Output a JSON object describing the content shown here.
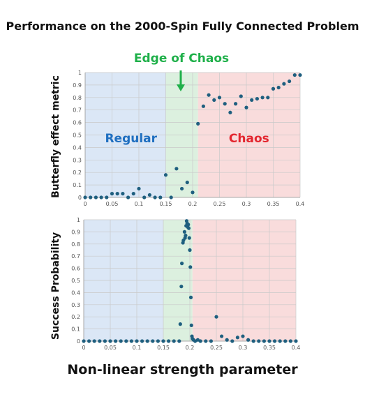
{
  "title": "Performance on the 2000-Spin Fully Connected Problem",
  "edge_label": "Edge of Chaos",
  "x_label": "Non-linear strength parameter",
  "colors": {
    "regular_bg": "#dbe7f6",
    "edge_bg": "#dcf0df",
    "chaos_bg": "#f9dcdc",
    "point": "#1f5f7f",
    "edge_text": "#1fb04a",
    "regular_text": "#1f6fc0",
    "chaos_text": "#e3262f",
    "arrow": "#1fb04a"
  },
  "chart_data": [
    {
      "type": "scatter",
      "ylabel": "Butterfly effect metric",
      "xlim": [
        0,
        0.4
      ],
      "ylim": [
        0,
        1
      ],
      "x_ticks": [
        "0",
        "0.05",
        "0.1",
        "0.15",
        "0.2",
        "0.25",
        "0.3",
        "0.35",
        "0.4"
      ],
      "y_ticks": [
        "0",
        "0.1",
        "0.2",
        "0.3",
        "0.4",
        "0.5",
        "0.6",
        "0.7",
        "0.8",
        "0.9",
        "1"
      ],
      "regions": [
        {
          "name": "Regular",
          "from": 0,
          "to": 0.15
        },
        {
          "name": "",
          "from": 0.15,
          "to": 0.21
        },
        {
          "name": "Chaos",
          "from": 0.21,
          "to": 0.4
        }
      ],
      "points": [
        [
          0.0,
          0.0
        ],
        [
          0.01,
          0.0
        ],
        [
          0.02,
          0.0
        ],
        [
          0.03,
          0.0
        ],
        [
          0.04,
          0.0
        ],
        [
          0.05,
          0.03
        ],
        [
          0.06,
          0.03
        ],
        [
          0.07,
          0.03
        ],
        [
          0.08,
          0.0
        ],
        [
          0.09,
          0.03
        ],
        [
          0.1,
          0.07
        ],
        [
          0.11,
          0.0
        ],
        [
          0.12,
          0.02
        ],
        [
          0.13,
          0.0
        ],
        [
          0.14,
          0.0
        ],
        [
          0.15,
          0.18
        ],
        [
          0.16,
          0.0
        ],
        [
          0.17,
          0.23
        ],
        [
          0.18,
          0.07
        ],
        [
          0.19,
          0.12
        ],
        [
          0.2,
          0.04
        ],
        [
          0.21,
          0.59
        ],
        [
          0.22,
          0.73
        ],
        [
          0.23,
          0.82
        ],
        [
          0.24,
          0.78
        ],
        [
          0.25,
          0.8
        ],
        [
          0.26,
          0.75
        ],
        [
          0.27,
          0.68
        ],
        [
          0.28,
          0.75
        ],
        [
          0.29,
          0.81
        ],
        [
          0.3,
          0.72
        ],
        [
          0.31,
          0.78
        ],
        [
          0.32,
          0.79
        ],
        [
          0.33,
          0.8
        ],
        [
          0.34,
          0.8
        ],
        [
          0.35,
          0.87
        ],
        [
          0.36,
          0.88
        ],
        [
          0.37,
          0.91
        ],
        [
          0.38,
          0.93
        ],
        [
          0.39,
          0.98
        ],
        [
          0.4,
          0.98
        ]
      ]
    },
    {
      "type": "scatter",
      "ylabel": "Success Probability",
      "xlim": [
        0,
        0.4
      ],
      "ylim": [
        0,
        1
      ],
      "x_ticks": [
        "0",
        "0.05",
        "0.1",
        "0.15",
        "0.2",
        "0.25",
        "0.3",
        "0.35",
        "0.4"
      ],
      "y_ticks": [
        "0",
        "0.1",
        "0.2",
        "0.3",
        "0.4",
        "0.5",
        "0.6",
        "0.7",
        "0.8",
        "0.9",
        "1"
      ],
      "regions": [
        {
          "name": "",
          "from": 0,
          "to": 0.15
        },
        {
          "name": "",
          "from": 0.15,
          "to": 0.205
        },
        {
          "name": "",
          "from": 0.205,
          "to": 0.4
        }
      ],
      "points": [
        [
          0.0,
          0.0
        ],
        [
          0.01,
          0.0
        ],
        [
          0.02,
          0.0
        ],
        [
          0.03,
          0.0
        ],
        [
          0.04,
          0.0
        ],
        [
          0.05,
          0.0
        ],
        [
          0.06,
          0.0
        ],
        [
          0.07,
          0.0
        ],
        [
          0.08,
          0.0
        ],
        [
          0.09,
          0.0
        ],
        [
          0.1,
          0.0
        ],
        [
          0.11,
          0.0
        ],
        [
          0.12,
          0.0
        ],
        [
          0.13,
          0.0
        ],
        [
          0.14,
          0.0
        ],
        [
          0.15,
          0.0
        ],
        [
          0.16,
          0.0
        ],
        [
          0.17,
          0.0
        ],
        [
          0.18,
          0.0
        ],
        [
          0.182,
          0.14
        ],
        [
          0.184,
          0.45
        ],
        [
          0.185,
          0.64
        ],
        [
          0.187,
          0.81
        ],
        [
          0.188,
          0.83
        ],
        [
          0.19,
          0.9
        ],
        [
          0.191,
          0.85
        ],
        [
          0.192,
          0.87
        ],
        [
          0.193,
          0.95
        ],
        [
          0.194,
          0.99
        ],
        [
          0.195,
          0.97
        ],
        [
          0.196,
          0.94
        ],
        [
          0.197,
          0.96
        ],
        [
          0.198,
          0.93
        ],
        [
          0.199,
          0.85
        ],
        [
          0.2,
          0.75
        ],
        [
          0.201,
          0.61
        ],
        [
          0.202,
          0.36
        ],
        [
          0.203,
          0.13
        ],
        [
          0.204,
          0.04
        ],
        [
          0.205,
          0.02
        ],
        [
          0.207,
          0.01
        ],
        [
          0.21,
          0.0
        ],
        [
          0.215,
          0.01
        ],
        [
          0.22,
          0.0
        ],
        [
          0.23,
          0.0
        ],
        [
          0.24,
          0.0
        ],
        [
          0.25,
          0.2
        ],
        [
          0.26,
          0.04
        ],
        [
          0.27,
          0.01
        ],
        [
          0.28,
          0.0
        ],
        [
          0.29,
          0.03
        ],
        [
          0.3,
          0.04
        ],
        [
          0.31,
          0.01
        ],
        [
          0.32,
          0.0
        ],
        [
          0.33,
          0.0
        ],
        [
          0.34,
          0.0
        ],
        [
          0.35,
          0.0
        ],
        [
          0.36,
          0.0
        ],
        [
          0.37,
          0.0
        ],
        [
          0.38,
          0.0
        ],
        [
          0.39,
          0.0
        ],
        [
          0.4,
          0.0
        ]
      ]
    }
  ]
}
